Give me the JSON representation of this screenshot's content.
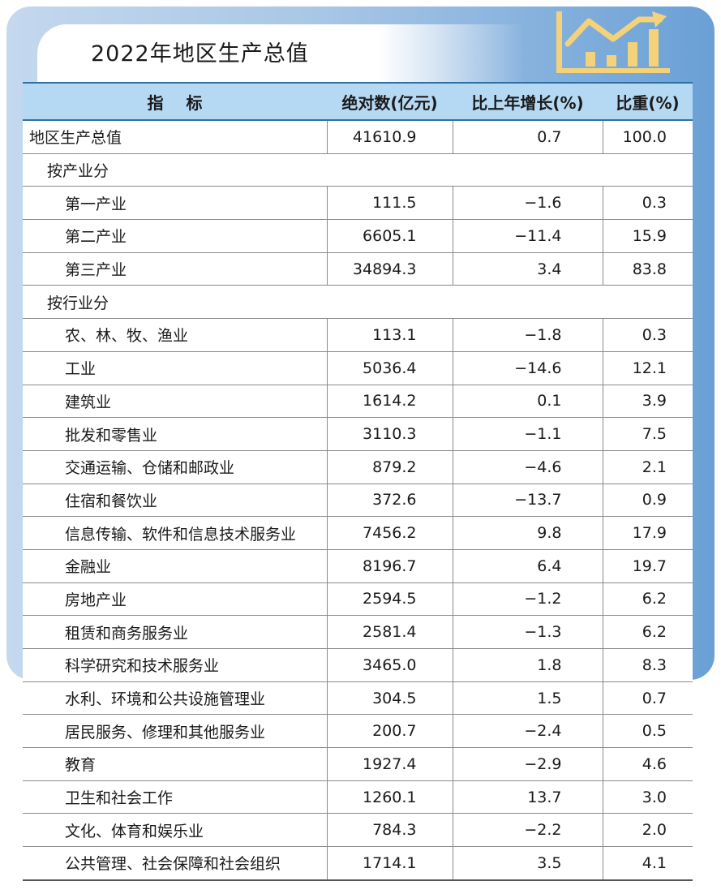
{
  "title": "2022年地区生产总值",
  "colors": {
    "header_bg": "#b6d9f3",
    "panel_blue": "#6aa0d6",
    "icon_gold": "#f3d27a"
  },
  "icon": "bar-line-chart-icon",
  "headers": [
    "指标",
    "绝对数(亿元)",
    "比上年增长(%)",
    "比重(%)"
  ],
  "rows": [
    {
      "label": "地区生产总值",
      "level": 0,
      "abs": "41610.9",
      "growth": "0.7",
      "share": "100.0"
    },
    {
      "label": "按产业分",
      "level": 1,
      "section": true
    },
    {
      "label": "第一产业",
      "level": 2,
      "abs": "111.5",
      "growth": "−1.6",
      "share": "0.3"
    },
    {
      "label": "第二产业",
      "level": 2,
      "abs": "6605.1",
      "growth": "−11.4",
      "share": "15.9"
    },
    {
      "label": "第三产业",
      "level": 2,
      "abs": "34894.3",
      "growth": "3.4",
      "share": "83.8"
    },
    {
      "label": "按行业分",
      "level": 1,
      "section": true
    },
    {
      "label": "农、林、牧、渔业",
      "level": 2,
      "abs": "113.1",
      "growth": "−1.8",
      "share": "0.3"
    },
    {
      "label": "工业",
      "level": 2,
      "abs": "5036.4",
      "growth": "−14.6",
      "share": "12.1"
    },
    {
      "label": "建筑业",
      "level": 2,
      "abs": "1614.2",
      "growth": "0.1",
      "share": "3.9"
    },
    {
      "label": "批发和零售业",
      "level": 2,
      "abs": "3110.3",
      "growth": "−1.1",
      "share": "7.5"
    },
    {
      "label": "交通运输、仓储和邮政业",
      "level": 2,
      "abs": "879.2",
      "growth": "−4.6",
      "share": "2.1"
    },
    {
      "label": "住宿和餐饮业",
      "level": 2,
      "abs": "372.6",
      "growth": "−13.7",
      "share": "0.9"
    },
    {
      "label": "信息传输、软件和信息技术服务业",
      "level": 2,
      "abs": "7456.2",
      "growth": "9.8",
      "share": "17.9"
    },
    {
      "label": "金融业",
      "level": 2,
      "abs": "8196.7",
      "growth": "6.4",
      "share": "19.7"
    },
    {
      "label": "房地产业",
      "level": 2,
      "abs": "2594.5",
      "growth": "−1.2",
      "share": "6.2"
    },
    {
      "label": "租赁和商务服务业",
      "level": 2,
      "abs": "2581.4",
      "growth": "−1.3",
      "share": "6.2"
    },
    {
      "label": "科学研究和技术服务业",
      "level": 2,
      "abs": "3465.0",
      "growth": "1.8",
      "share": "8.3"
    },
    {
      "label": "水利、环境和公共设施管理业",
      "level": 2,
      "abs": "304.5",
      "growth": "1.5",
      "share": "0.7"
    },
    {
      "label": "居民服务、修理和其他服务业",
      "level": 2,
      "abs": "200.7",
      "growth": "−2.4",
      "share": "0.5"
    },
    {
      "label": "教育",
      "level": 2,
      "abs": "1927.4",
      "growth": "−2.9",
      "share": "4.6"
    },
    {
      "label": "卫生和社会工作",
      "level": 2,
      "abs": "1260.1",
      "growth": "13.7",
      "share": "3.0"
    },
    {
      "label": "文化、体育和娱乐业",
      "level": 2,
      "abs": "784.3",
      "growth": "−2.2",
      "share": "2.0"
    },
    {
      "label": "公共管理、社会保障和社会组织",
      "level": 2,
      "abs": "1714.1",
      "growth": "3.5",
      "share": "4.1"
    }
  ]
}
